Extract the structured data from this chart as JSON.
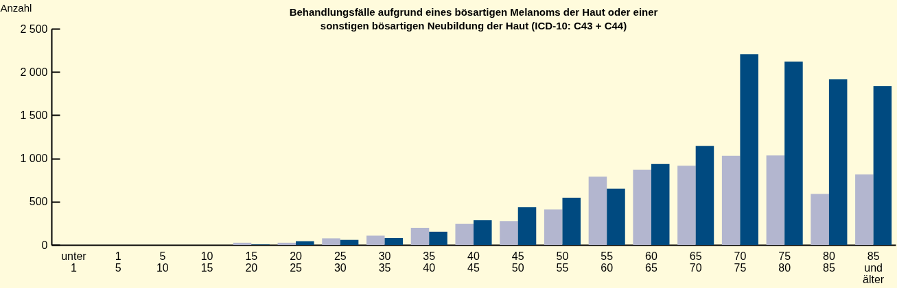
{
  "chart_data": {
    "type": "bar",
    "title": "Behandlungsfälle aufgrund eines bösartigen Melanoms der Haut oder einer\nsonstigen bösartigen Neubildung der Haut (ICD-10: C43 + C44)",
    "ylabel": "Anzahl",
    "categories": [
      "unter\n1",
      "1\n5",
      "5\n10",
      "10\n15",
      "15\n20",
      "20\n25",
      "25\n30",
      "30\n35",
      "35\n40",
      "40\n45",
      "45\n50",
      "50\n55",
      "55\n60",
      "60\n65",
      "65\n70",
      "70\n75",
      "75\n80",
      "80\n85",
      "85\nund\nälter"
    ],
    "series": [
      {
        "color": "#b3b6cf",
        "values": [
          0,
          0,
          0,
          0,
          25,
          25,
          76,
          107,
          198,
          245,
          275,
          410,
          790,
          870,
          915,
          1030,
          1035,
          590,
          815
        ]
      },
      {
        "color": "#004a80",
        "values": [
          0,
          0,
          0,
          0,
          5,
          43,
          58,
          79,
          152,
          285,
          435,
          545,
          650,
          935,
          1145,
          2205,
          2120,
          1915,
          1835
        ]
      }
    ],
    "ylim": [
      0,
      2500
    ],
    "yticks": [
      0,
      500,
      {
        "value": 1000,
        "label": "1 000"
      },
      {
        "value": 1500,
        "label": "1 500"
      },
      {
        "value": 2000,
        "label": "2 000"
      },
      {
        "value": 2500,
        "label": "2 500"
      }
    ],
    "grid": false,
    "legend": false
  }
}
